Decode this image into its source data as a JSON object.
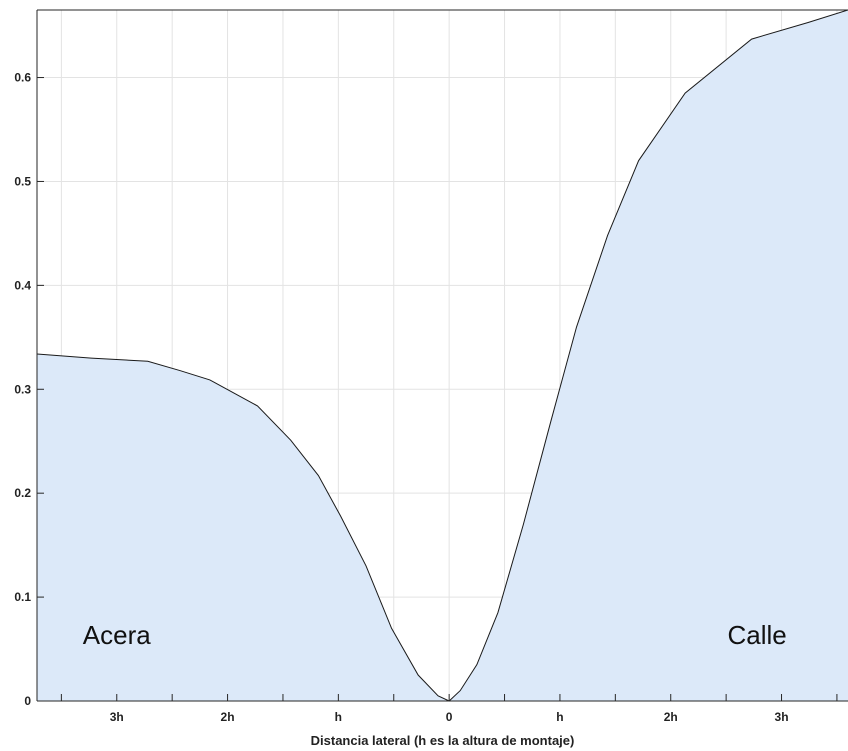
{
  "chart_data": {
    "type": "area",
    "xlabel": "Distancia lateral (h es la altura de montaje)",
    "ylabel": "",
    "xlim": [
      -3.72,
      3.6
    ],
    "ylim": [
      0,
      0.665
    ],
    "grid": true,
    "x_ticks": [
      {
        "value": -3,
        "label": "3h"
      },
      {
        "value": -2,
        "label": "2h"
      },
      {
        "value": -1,
        "label": "h"
      },
      {
        "value": 0,
        "label": "0"
      },
      {
        "value": 1,
        "label": "h"
      },
      {
        "value": 2,
        "label": "2h"
      },
      {
        "value": 3,
        "label": "3h"
      }
    ],
    "y_ticks": [
      {
        "value": 0,
        "label": "0"
      },
      {
        "value": 0.1,
        "label": "0.1"
      },
      {
        "value": 0.2,
        "label": "0.2"
      },
      {
        "value": 0.3,
        "label": "0.3"
      },
      {
        "value": 0.4,
        "label": "0.4"
      },
      {
        "value": 0.5,
        "label": "0.5"
      },
      {
        "value": 0.6,
        "label": "0.6"
      }
    ],
    "annotations": [
      {
        "text": "Acera",
        "x": -3.0,
        "y": 0.055
      },
      {
        "text": "Calle",
        "x": 2.78,
        "y": 0.055
      }
    ],
    "series": [
      {
        "x": [
          -3.72,
          -3.23,
          -2.72,
          -2.43,
          -2.16,
          -1.73,
          -1.43,
          -1.18,
          -0.98,
          -0.75,
          -0.52,
          -0.28,
          -0.1,
          0.0,
          0.1,
          0.25,
          0.44,
          0.67,
          0.92,
          1.15,
          1.43,
          1.71,
          2.13,
          2.73,
          3.24,
          3.6
        ],
        "y": [
          0.334,
          0.33,
          0.327,
          0.318,
          0.309,
          0.284,
          0.251,
          0.217,
          0.178,
          0.13,
          0.07,
          0.025,
          0.005,
          0.0,
          0.01,
          0.035,
          0.085,
          0.17,
          0.27,
          0.36,
          0.448,
          0.52,
          0.585,
          0.637,
          0.653,
          0.665
        ],
        "fill": "#dce9f9",
        "stroke": "#1a1a1a"
      }
    ]
  }
}
